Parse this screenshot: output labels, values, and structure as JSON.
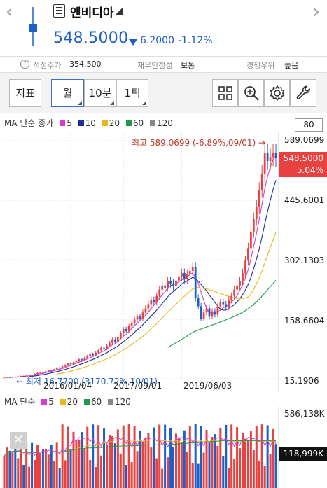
{
  "header": {
    "prev_arrow": "‹",
    "next_arrow": "›",
    "stock_name": "엔비디아",
    "price": "548.5000",
    "change_value": "6.2000",
    "change_pct": "-1.12%",
    "colors": {
      "down": "#1d5fc9",
      "up": "#e8413f"
    }
  },
  "info": {
    "help": "?",
    "fair_label": "적정주가",
    "fair_value": "354.500",
    "stability_label": "재무안정성",
    "stability_value": "보통",
    "compete_label": "경쟁우위",
    "compete_value": "높음"
  },
  "toolbar": {
    "indicator_label": "지표",
    "month_label": "월",
    "min10_label": "10분",
    "tick_label": "1틱",
    "icons": [
      "grid-icon",
      "zoom-icon",
      "gear-icon",
      "wrench-icon"
    ]
  },
  "ma_legend": {
    "title": "MA 단순 종가",
    "items": [
      {
        "label": "5",
        "color": "#d63bd6"
      },
      {
        "label": "10",
        "color": "#1c2f9e"
      },
      {
        "label": "20",
        "color": "#e8b820"
      },
      {
        "label": "60",
        "color": "#1f9a4d"
      },
      {
        "label": "120",
        "color": "#888888"
      }
    ],
    "period_value": "80"
  },
  "price_axis": [
    "589.0699",
    "445.6001",
    "302.1303",
    "158.6604",
    "15.1906"
  ],
  "current_price_box": {
    "price": "548.5000",
    "pct": "5.04%"
  },
  "max_note": "최고 589.0699 (-6.89%,09/01) →",
  "min_note": "← 최저 16.7700 (3170.72%,10/01)",
  "date_labels": [
    "2016/01/04",
    "2017/09/01",
    "2019/06/03"
  ],
  "volume": {
    "legend_title": "MA 단순",
    "items": [
      {
        "label": "5",
        "color": "#d63bd6"
      },
      {
        "label": "20",
        "color": "#e8b820"
      },
      {
        "label": "60",
        "color": "#1f9a4d"
      },
      {
        "label": "120",
        "color": "#888888"
      }
    ],
    "axis_max": "586,138K",
    "current": "118,999K",
    "close": "✕"
  },
  "chart_data": {
    "type": "candlestick",
    "y_range": [
      15.1906,
      589.0699
    ],
    "closes": [
      18,
      19,
      18,
      20,
      19,
      21,
      22,
      20,
      23,
      25,
      24,
      27,
      29,
      31,
      30,
      33,
      36,
      35,
      38,
      42,
      40,
      45,
      48,
      52,
      50,
      55,
      58,
      62,
      60,
      66,
      70,
      75,
      72,
      78,
      84,
      90,
      88,
      95,
      102,
      110,
      105,
      115,
      125,
      135,
      130,
      142,
      150,
      158,
      165,
      160,
      175,
      185,
      195,
      205,
      200,
      215,
      230,
      240,
      235,
      250,
      245,
      238,
      252,
      262,
      270,
      255,
      268,
      275,
      285,
      210,
      190,
      160,
      175,
      185,
      165,
      178,
      170,
      190,
      200,
      195,
      188,
      205,
      215,
      230,
      240,
      250,
      270,
      300,
      330,
      370,
      400,
      430,
      470,
      510,
      560,
      540,
      550,
      560,
      548.5
    ],
    "date_ticks": [
      {
        "index": 24,
        "label": "2016/01/04"
      },
      {
        "index": 43,
        "label": "2017/09/01"
      },
      {
        "index": 64,
        "label": "2019/06/03"
      }
    ],
    "max": {
      "value": 589.0699,
      "label": "최고"
    },
    "min": {
      "value": 16.77,
      "label": "최저"
    }
  }
}
